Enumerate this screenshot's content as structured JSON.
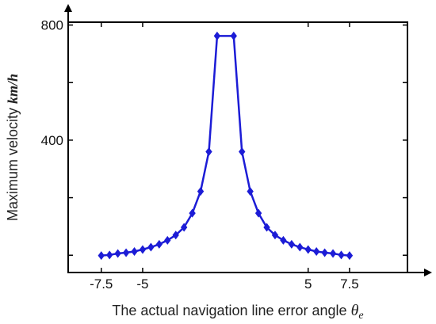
{
  "chart_data": {
    "type": "line",
    "xlabel": "The actual navigation line error angle",
    "xlabel_symbol": "θ",
    "xlabel_subscript": "e",
    "ylabel": "Maximum velocity ",
    "ylabel_unit": "km/h",
    "xlim": [
      -9.5,
      11
    ],
    "ylim": [
      -60,
      810
    ],
    "x_tick_labels": [
      "-7.5",
      "-5",
      "5",
      "7.5"
    ],
    "x_ticks": [
      -7.5,
      -5,
      5,
      7.5
    ],
    "y_tick_labels": [
      "400",
      "800"
    ],
    "y_ticks": [
      400,
      800
    ],
    "y_minor_ticks": [
      0,
      200,
      600
    ],
    "grid": false,
    "legend": "none",
    "color": "#1c1cd6",
    "series": [
      {
        "x": [
          -7.5,
          -7.0,
          -6.5,
          -6.0,
          -5.5,
          -5.0,
          -4.5,
          -4.0,
          -3.5,
          -3.0,
          -2.5,
          -2.0,
          -1.5,
          -1.0,
          -0.5,
          0.5,
          1.0,
          1.5,
          2.0,
          2.5,
          3.0,
          3.5,
          4.0,
          4.5,
          5.0,
          5.5,
          6.0,
          6.5,
          7.0,
          7.5
        ],
        "y": [
          -1,
          1,
          6,
          9,
          13,
          20,
          28,
          38,
          52,
          70,
          97,
          146,
          222,
          360,
          762,
          762,
          360,
          222,
          146,
          97,
          70,
          52,
          38,
          28,
          20,
          13,
          9,
          6,
          1,
          -1
        ]
      }
    ]
  }
}
